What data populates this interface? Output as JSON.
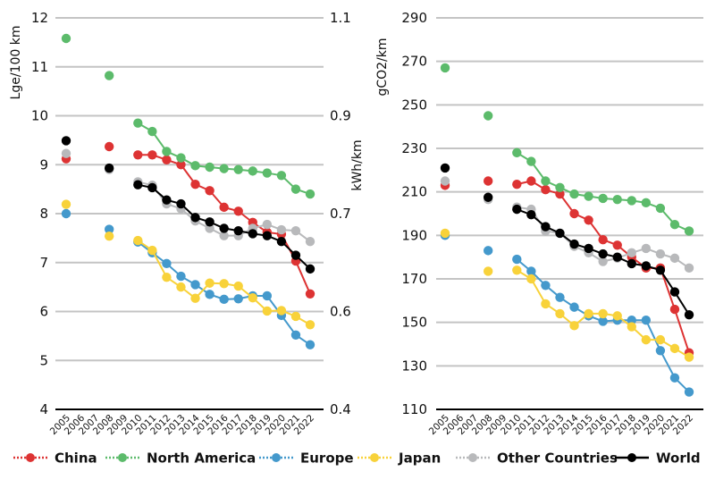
{
  "chart_data": [
    {
      "type": "line",
      "panel": "left",
      "ylabel": "Lge/100 km",
      "ylabel_right": "kWh/km",
      "ylim": [
        4,
        12
      ],
      "yticks": [
        4,
        5,
        6,
        7,
        8,
        9,
        10,
        11,
        12
      ],
      "yticks_right": [
        "1.1",
        "0.9",
        "0.7",
        "0.6",
        "0.4"
      ],
      "yticks_right_at_left_units": [
        12,
        10,
        8,
        6,
        4
      ],
      "grid": true,
      "x": [
        2005,
        2008,
        2010,
        2011,
        2012,
        2013,
        2014,
        2015,
        2016,
        2017,
        2018,
        2019,
        2020,
        2021,
        2022
      ],
      "series": [
        {
          "name": "China",
          "color": "#dd3333",
          "values": [
            9.12,
            9.37,
            9.2,
            9.2,
            9.1,
            9.0,
            8.6,
            8.47,
            8.13,
            8.05,
            7.82,
            7.62,
            7.58,
            7.03,
            6.36
          ]
        },
        {
          "name": "North America",
          "color": "#5cbb6b",
          "values": [
            11.58,
            10.82,
            9.85,
            9.68,
            9.27,
            9.14,
            8.98,
            8.95,
            8.92,
            8.9,
            8.87,
            8.83,
            8.78,
            8.5,
            8.4
          ]
        },
        {
          "name": "Europe",
          "color": "#4499cc",
          "values": [
            8.0,
            7.68,
            7.42,
            7.2,
            6.98,
            6.72,
            6.55,
            6.35,
            6.25,
            6.26,
            6.32,
            6.32,
            5.92,
            5.52,
            5.32
          ]
        },
        {
          "name": "Japan",
          "color": "#f8d23a",
          "values": [
            8.19,
            7.54,
            7.45,
            7.25,
            6.7,
            6.5,
            6.27,
            6.58,
            6.57,
            6.52,
            6.28,
            6.01,
            6.02,
            5.9,
            5.73
          ]
        },
        {
          "name": "Other Countries",
          "color": "#b8b9bb",
          "values": [
            9.23,
            8.9,
            8.65,
            8.58,
            8.2,
            8.1,
            7.85,
            7.7,
            7.55,
            7.55,
            7.7,
            7.78,
            7.67,
            7.65,
            7.43
          ]
        },
        {
          "name": "World",
          "color": "#000000",
          "values": [
            9.49,
            8.93,
            8.59,
            8.53,
            8.28,
            8.2,
            7.92,
            7.83,
            7.7,
            7.65,
            7.59,
            7.55,
            7.43,
            7.15,
            6.87
          ]
        }
      ]
    },
    {
      "type": "line",
      "panel": "right",
      "ylabel": "gCO2/km",
      "ylim": [
        110,
        290
      ],
      "yticks": [
        110,
        130,
        150,
        170,
        190,
        210,
        230,
        250,
        270,
        290
      ],
      "grid": true,
      "x": [
        2005,
        2008,
        2010,
        2011,
        2012,
        2013,
        2014,
        2015,
        2016,
        2017,
        2018,
        2019,
        2020,
        2021,
        2022
      ],
      "series": [
        {
          "name": "China",
          "color": "#dd3333",
          "values": [
            213,
            215,
            213.5,
            215,
            211,
            209,
            200,
            197,
            188,
            185.5,
            180,
            175,
            175,
            156,
            136
          ]
        },
        {
          "name": "North America",
          "color": "#5cbb6b",
          "values": [
            267,
            245,
            228,
            224,
            215,
            212,
            209,
            208,
            207,
            206.5,
            206,
            205,
            202.5,
            195,
            192
          ]
        },
        {
          "name": "Europe",
          "color": "#4499cc",
          "values": [
            190,
            183,
            179,
            173.5,
            167,
            161.5,
            157,
            153,
            150.5,
            151,
            151,
            151,
            137,
            124.5,
            118
          ]
        },
        {
          "name": "Japan",
          "color": "#f8d23a",
          "values": [
            191,
            173.5,
            174,
            170,
            158.5,
            154,
            148.5,
            154,
            154,
            153,
            148,
            142,
            142,
            138,
            134
          ]
        },
        {
          "name": "Other Countries",
          "color": "#b8b9bb",
          "values": [
            215,
            206.5,
            203,
            202,
            192,
            191,
            185,
            182,
            178,
            179.5,
            182,
            184,
            181.5,
            179.5,
            175
          ]
        },
        {
          "name": "World",
          "color": "#000000",
          "values": [
            221,
            207.5,
            202,
            199.5,
            194,
            191,
            186,
            184,
            181.5,
            180,
            177,
            176,
            174,
            164,
            153.5
          ]
        }
      ]
    }
  ],
  "xtick_labels": [
    "2005",
    "2006",
    "2007",
    "2008",
    "2009",
    "2010",
    "2011",
    "2012",
    "2013",
    "2014",
    "2015",
    "2016",
    "2017",
    "2018",
    "2019",
    "2020",
    "2021",
    "2022"
  ],
  "legend": {
    "placement": "bottom",
    "items": [
      {
        "label": "China",
        "color": "#dd3333",
        "style": "dotted"
      },
      {
        "label": "North America",
        "color": "#5cbb6b",
        "style": "dotted"
      },
      {
        "label": "Europe",
        "color": "#4499cc",
        "style": "dotted"
      },
      {
        "label": "Japan",
        "color": "#f8d23a",
        "style": "dotted"
      },
      {
        "label": "Other Countries",
        "color": "#b8b9bb",
        "style": "dotted"
      },
      {
        "label": "World",
        "color": "#000000",
        "style": "solid"
      }
    ]
  }
}
